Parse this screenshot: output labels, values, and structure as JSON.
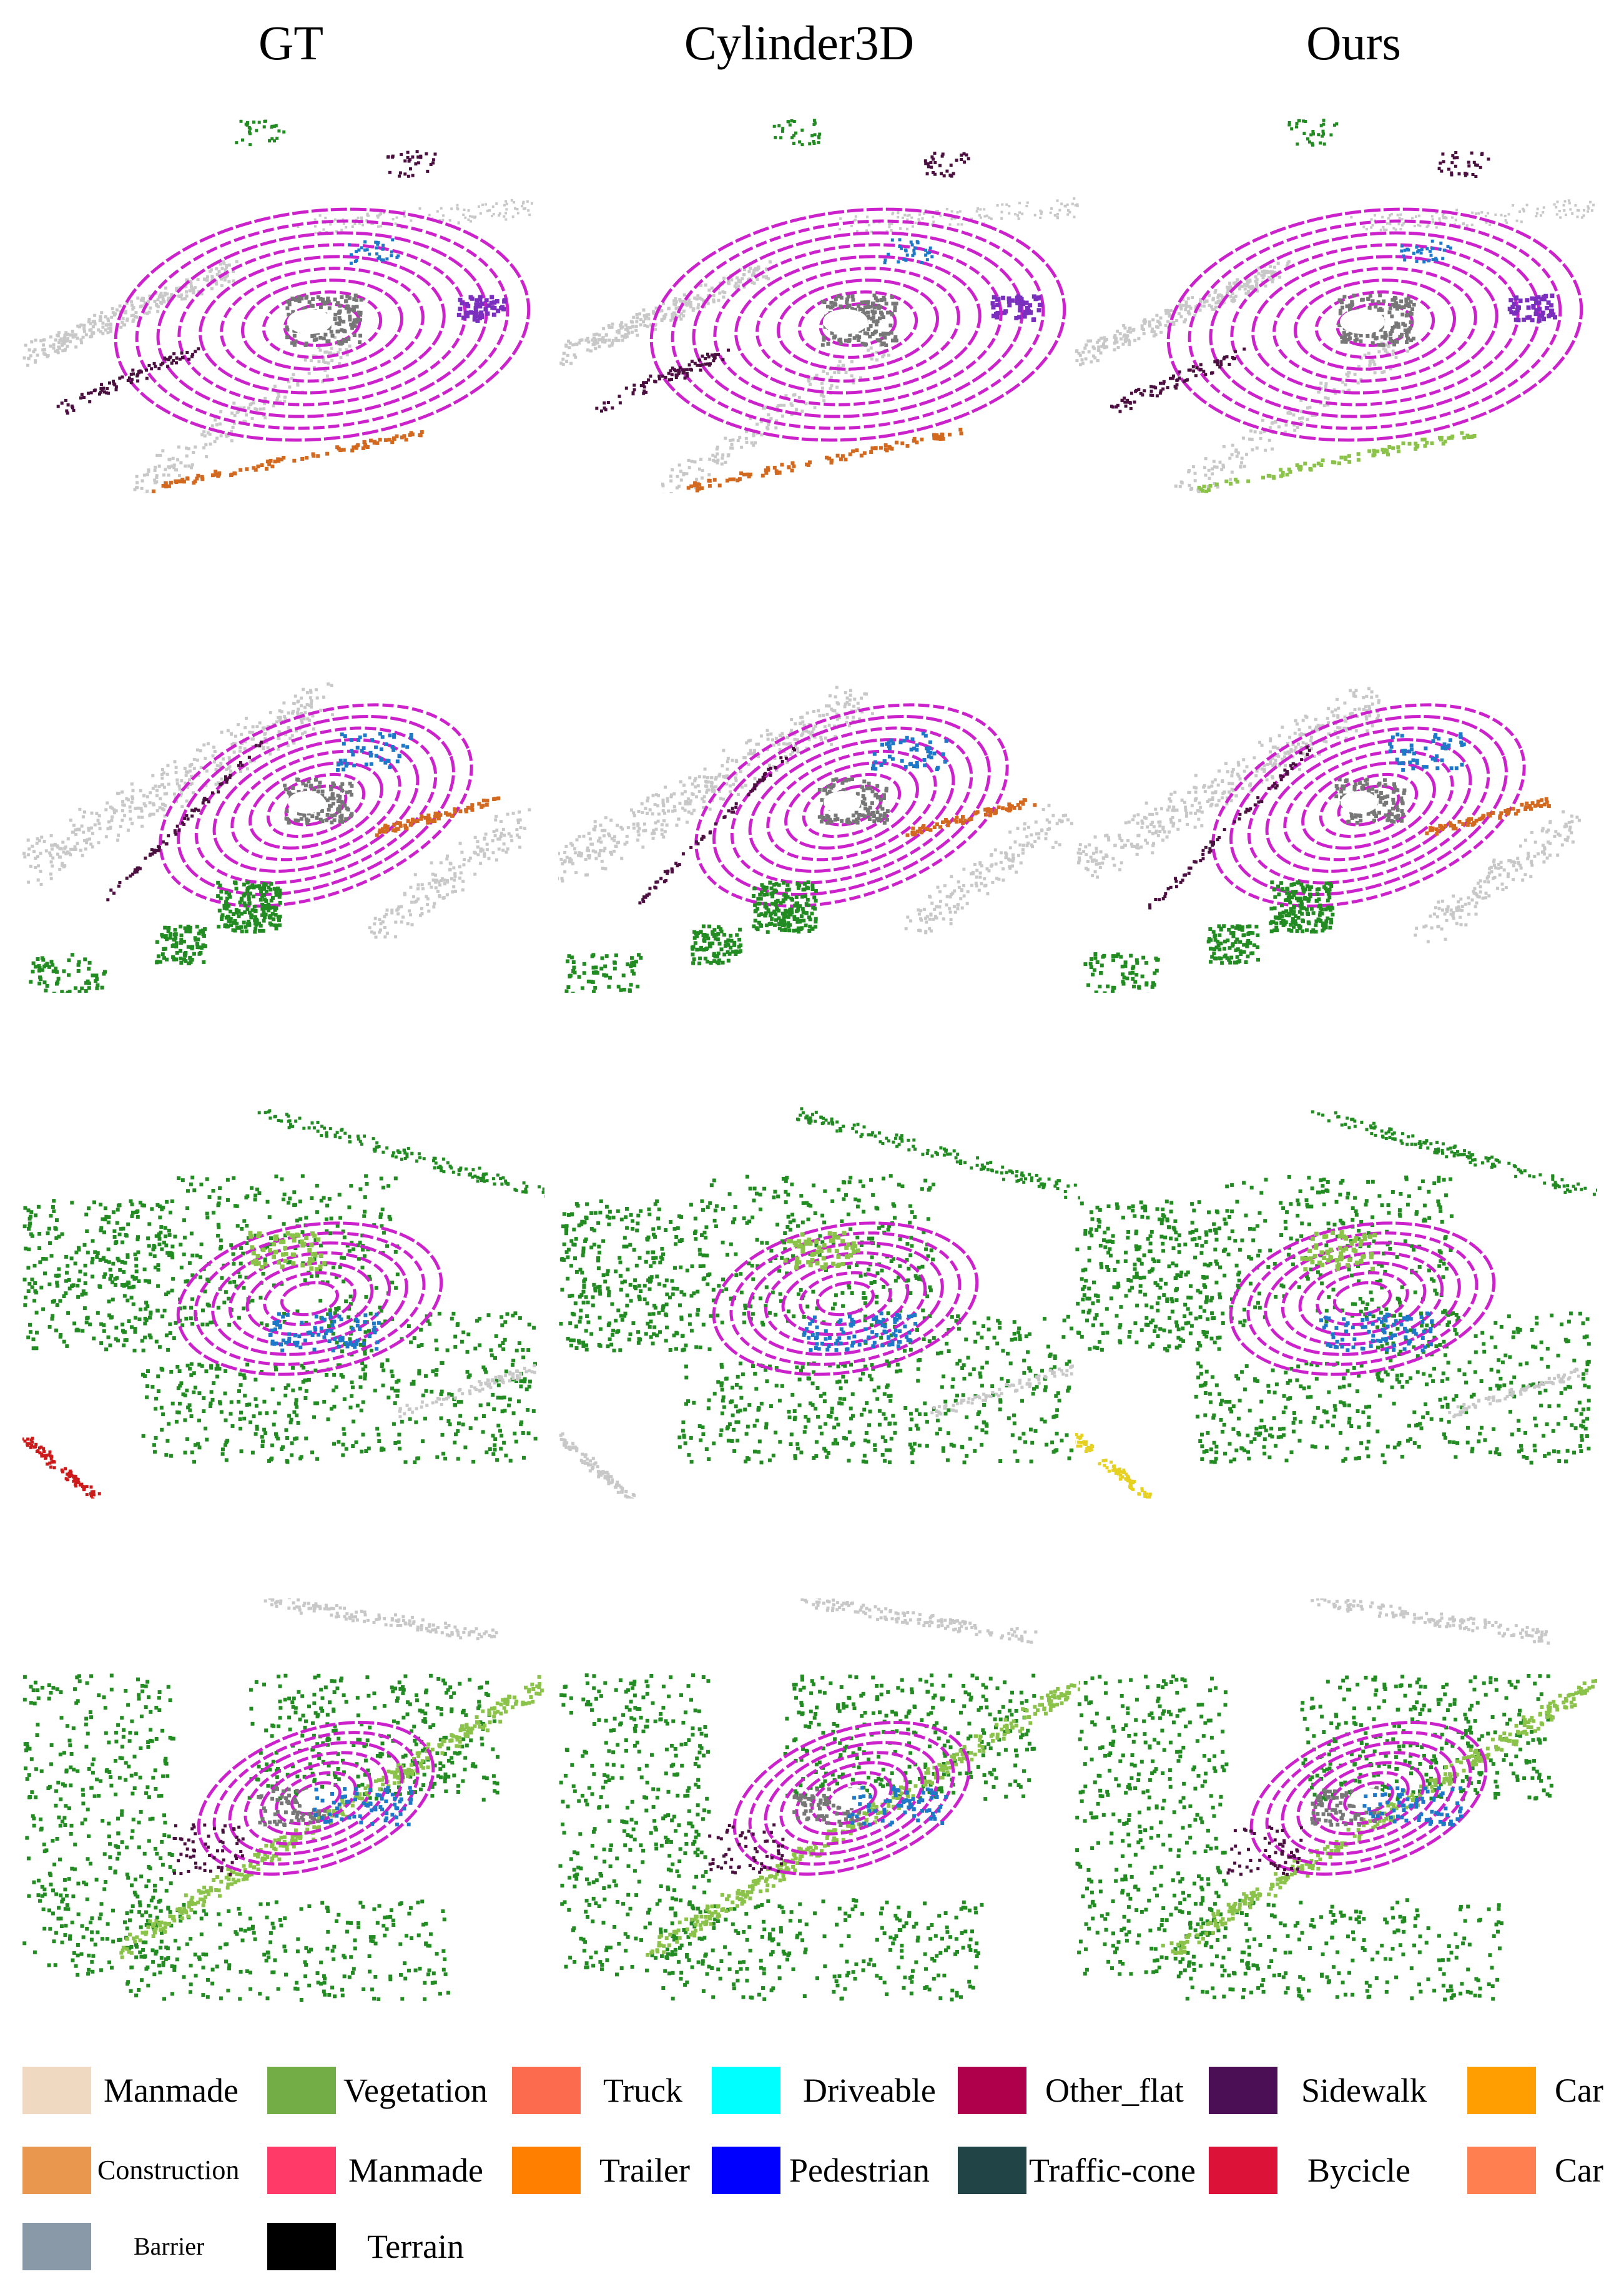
{
  "columns": [
    {
      "title": "GT"
    },
    {
      "title": "Cylinder3D"
    },
    {
      "title": "Ours"
    }
  ],
  "legend": [
    {
      "label": "Manmade",
      "color": "#efd9c0"
    },
    {
      "label": "Vegetation",
      "color": "#72ad45"
    },
    {
      "label": "Truck",
      "color": "#fd6b4f"
    },
    {
      "label": "Driveable",
      "color": "#00ffff"
    },
    {
      "label": "Other_flat",
      "color": "#af004b"
    },
    {
      "label": "Sidewalk",
      "color": "#4b0f55"
    },
    {
      "label": "Car",
      "color": "#ff9e00"
    },
    {
      "label": "Construction",
      "color": "#e9964f"
    },
    {
      "label": "Manmade",
      "color": "#ff3a69"
    },
    {
      "label": "Trailer",
      "color": "#ff7f00"
    },
    {
      "label": "Pedestrian",
      "color": "#0000ff"
    },
    {
      "label": "Traffic-cone",
      "color": "#214546"
    },
    {
      "label": "Bycicle",
      "color": "#dc1239"
    },
    {
      "label": "Car",
      "color": "#ff7f50"
    },
    {
      "label": "Barrier",
      "color": "#8a99a7"
    },
    {
      "label": "Terrain",
      "color": "#000000"
    }
  ],
  "point_colors": {
    "road_rings": "#cc22cc",
    "vegetation": "#228b22",
    "vegetation_light": "#8bc34a",
    "manmade": "#c8c8c8",
    "car": "#1e78c8",
    "sidewalk": "#4b1040",
    "trailer": "#d2691e",
    "ego_gray": "#777777",
    "truck": "#7b2fbe"
  }
}
